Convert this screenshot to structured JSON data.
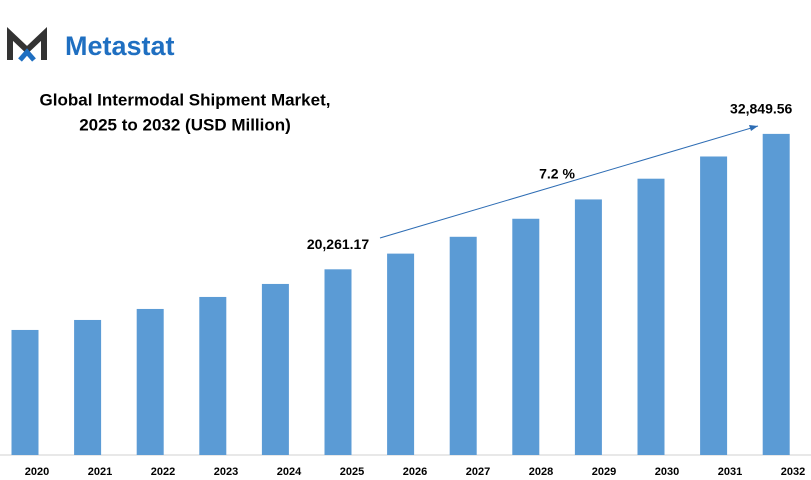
{
  "brand": "Metastat",
  "chart_data": {
    "type": "bar",
    "title": [
      "Global Intermodal Shipment Market,",
      "2025 to 2032 (USD Million)"
    ],
    "categories": [
      "2020",
      "2021",
      "2022",
      "2023",
      "2024",
      "2025",
      "2026",
      "2027",
      "2028",
      "2029",
      "2030",
      "2031",
      "2032"
    ],
    "values": [
      14624,
      15553,
      16576,
      17692,
      18901,
      20261.17,
      21720,
      23284,
      24960,
      26757,
      28684,
      30749,
      32849.56
    ],
    "value_labels": [
      null,
      null,
      null,
      null,
      null,
      "20,261.17",
      null,
      null,
      null,
      null,
      null,
      null,
      "32,849.56"
    ],
    "color": "#5b9bd5",
    "ylim": [
      3000,
      36000
    ],
    "annotation": "7.2 %"
  }
}
